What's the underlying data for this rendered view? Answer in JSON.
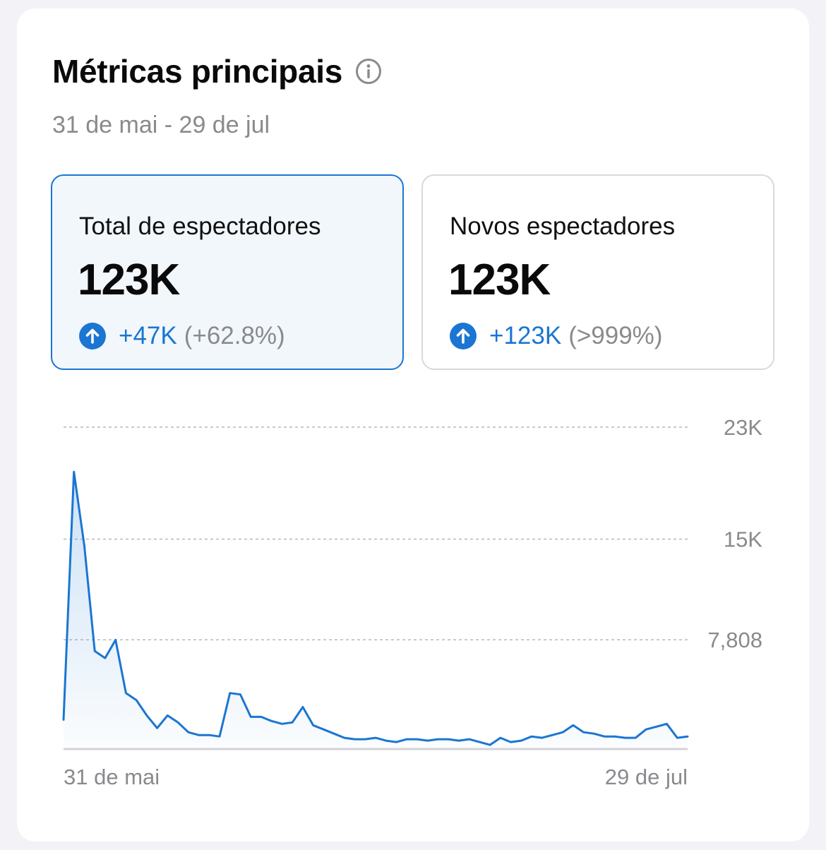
{
  "header": {
    "title": "Métricas principais",
    "date_range": "31 de mai - 29 de jul"
  },
  "metrics": [
    {
      "label": "Total de espectadores",
      "value": "123K",
      "delta": "+47K",
      "delta_pct": "(+62.8%)",
      "selected": true
    },
    {
      "label": "Novos espectadores",
      "value": "123K",
      "delta": "+123K",
      "delta_pct": "(>999%)",
      "selected": false
    }
  ],
  "icons": {
    "title_info": "info-icon",
    "delta_up": "arrow-up-circle-icon"
  },
  "colors": {
    "accent": "#1a76d2",
    "muted": "#8a8a8e",
    "selected_bg": "#f2f7fc"
  },
  "chart_data": {
    "type": "area",
    "y_tick_labels": [
      "23K",
      "15K",
      "7,808"
    ],
    "y_ticks": [
      23000,
      15000,
      7808
    ],
    "ylim": [
      0,
      23000
    ],
    "x_tick_labels": [
      "31 de mai",
      "29 de jul"
    ],
    "grid": true,
    "series": [
      {
        "values": [
          2100,
          19800,
          14500,
          7000,
          6500,
          7800,
          4000,
          3500,
          2400,
          1500,
          2400,
          1900,
          1200,
          1000,
          1000,
          900,
          4000,
          3900,
          2300,
          2300,
          2000,
          1800,
          1900,
          3000,
          1700,
          1400,
          1100,
          800,
          700,
          700,
          800,
          600,
          500,
          700,
          700,
          600,
          700,
          700,
          600,
          700,
          500,
          300,
          800,
          500,
          600,
          900,
          800,
          1000,
          1200,
          1700,
          1200,
          1100,
          900,
          900,
          800,
          800,
          1400,
          1600,
          1800,
          800,
          900
        ]
      }
    ]
  }
}
